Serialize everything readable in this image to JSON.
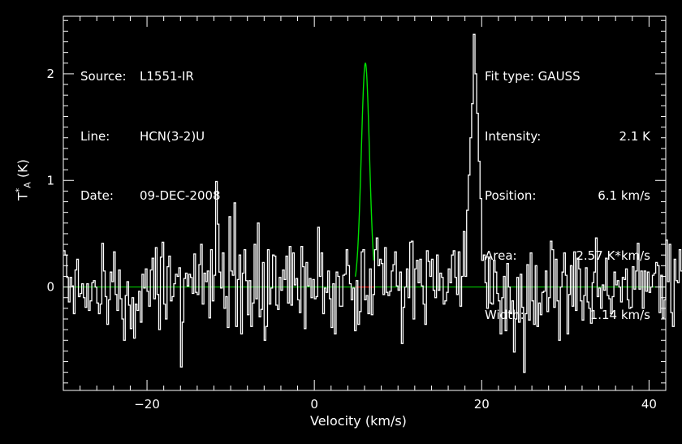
{
  "info_left": [
    {
      "label": "Source:",
      "value": "L1551-IR"
    },
    {
      "label": "Line:",
      "value": "HCN(3-2)U"
    },
    {
      "label": "Date:",
      "value": "09-DEC-2008"
    }
  ],
  "info_right": {
    "fit_type": "Fit type: GAUSS",
    "rows": [
      {
        "label": "Intensity:",
        "value": "2.1 K"
      },
      {
        "label": "Position:",
        "value": "6.1 km/s"
      },
      {
        "label": "Area:",
        "value": "2.57 K*km/s"
      },
      {
        "label": "Width:",
        "value": "1.14 km/s"
      }
    ]
  },
  "chart_data": {
    "type": "line",
    "xlabel": "Velocity (km/s)",
    "ylabel": {
      "base": "T",
      "sup": "*",
      "sub": "A",
      "unit": "(K)"
    },
    "xlim": [
      -30,
      42
    ],
    "ylim": [
      -0.97,
      2.54
    ],
    "x_ticks": [
      -20,
      0,
      20,
      40
    ],
    "y_ticks": [
      0,
      1,
      2
    ],
    "grid": false,
    "colors": {
      "spectrum": "#ffffff",
      "fit": "#00e000",
      "baseline": "#00e000",
      "fit_window": "#e00000",
      "frame": "#ffffff"
    },
    "fit": {
      "function": "gaussian",
      "peak": 2.1,
      "center": 6.1,
      "fwhm": 1.14,
      "window": [
        4.9,
        7.1
      ]
    },
    "series": [
      {
        "x_start": -29.9,
        "x_step": 0.2,
        "values": [
          0.34,
          0.3,
          0.09,
          -0.14,
          0.09,
          0.01,
          -0.25,
          0.16,
          0.26,
          -0.09,
          -0.06,
          0.03,
          -0.1,
          -0.19,
          0.03,
          -0.22,
          -0.13,
          0.04,
          0.06,
          0.0,
          -0.15,
          -0.25,
          -0.16,
          0.41,
          0.15,
          -0.09,
          -0.35,
          -0.12,
          0.14,
          0.05,
          0.33,
          -0.07,
          -0.22,
          0.16,
          -0.11,
          -0.3,
          -0.5,
          -0.08,
          0.05,
          -0.17,
          -0.39,
          -0.1,
          -0.48,
          -0.16,
          -0.22,
          -0.04,
          -0.33,
          0.12,
          -0.01,
          0.17,
          -0.04,
          -0.18,
          0.16,
          0.27,
          -0.11,
          0.37,
          -0.07,
          -0.4,
          0.28,
          0.42,
          -0.16,
          -0.3,
          0.19,
          0.29,
          -0.13,
          -0.09,
          0.03,
          0.12,
          0.1,
          0.18,
          -0.75,
          -0.33,
          0.08,
          0.13,
          0.01,
          0.12,
          0.09,
          -0.06,
          0.31,
          -0.05,
          -0.07,
          0.21,
          0.4,
          -0.16,
          0.13,
          0.05,
          0.15,
          -0.29,
          0.35,
          -0.13,
          0.11,
          0.99,
          0.59,
          0.14,
          -0.01,
          0.32,
          -0.2,
          -0.09,
          -0.38,
          0.66,
          0.15,
          0.11,
          0.79,
          -0.37,
          0.07,
          0.3,
          -0.44,
          0.13,
          0.35,
          0.06,
          -0.26,
          0.06,
          -0.37,
          -0.15,
          0.4,
          -0.11,
          0.6,
          -0.28,
          -0.21,
          0.23,
          -0.5,
          -0.37,
          0.35,
          -0.16,
          -0.01,
          0.3,
          0.29,
          -0.17,
          -0.21,
          0.09,
          -0.03,
          0.16,
          0.07,
          0.29,
          -0.15,
          0.38,
          -0.17,
          0.32,
          0.02,
          0.08,
          -0.12,
          -0.24,
          0.38,
          0.19,
          -0.39,
          0.23,
          0.01,
          0.08,
          -0.1,
          0.07,
          -0.11,
          -0.09,
          0.56,
          0.1,
          0.32,
          -0.25,
          -0.01,
          -0.05,
          0.15,
          -0.11,
          -0.38,
          0.03,
          -0.44,
          0.14,
          0.1,
          -0.18,
          -0.18,
          0.11,
          0.12,
          0.35,
          0.2,
          0.03,
          -0.12,
          -0.01,
          -0.41,
          0.06,
          -0.35,
          -0.23,
          0.33,
          0.35,
          -0.12,
          -0.08,
          -0.25,
          0.17,
          -0.26,
          -0.07,
          0.35,
          0.46,
          0.2,
          0.26,
          0.22,
          -0.07,
          0.37,
          -0.05,
          -0.08,
          -0.04,
          0.15,
          0.21,
          0.33,
          0.01,
          -0.03,
          0.14,
          -0.53,
          -0.19,
          0.0,
          0.17,
          -0.1,
          0.42,
          0.43,
          -0.3,
          0.17,
          0.25,
          0.04,
          0.26,
          0.01,
          -0.16,
          -0.35,
          0.34,
          0.24,
          0.1,
          0.26,
          -0.03,
          -0.1,
          0.3,
          -0.03,
          0.13,
          0.09,
          -0.16,
          -0.13,
          -0.05,
          0.17,
          0.04,
          0.3,
          0.34,
          0.09,
          -0.07,
          0.33,
          -0.18,
          0.1,
          0.52,
          0.1,
          0.72,
          1.05,
          1.4,
          1.72,
          2.37,
          2.0,
          1.63,
          1.18,
          0.83,
          0.25,
          0.3,
          0.04,
          -0.2,
          0.27,
          -0.15,
          -0.16,
          0.25,
          0.14,
          -0.06,
          -0.13,
          -0.44,
          -0.1,
          0.1,
          -0.41,
          0.22,
          0.0,
          -0.25,
          -0.13,
          -0.61,
          -0.3,
          0.09,
          -0.33,
          0.12,
          -0.19,
          -0.8,
          -0.25,
          0.21,
          -0.31,
          0.32,
          -0.13,
          -0.35,
          0.2,
          -0.37,
          -0.15,
          -0.26,
          -0.05,
          -0.04,
          0.15,
          -0.23,
          -0.1,
          0.43,
          0.35,
          -0.19,
          0.26,
          -0.13,
          -0.5,
          0.0,
          0.14,
          0.32,
          0.11,
          -0.44,
          -0.07,
          0.2,
          -0.18,
          0.33,
          -0.22,
          0.27,
          0.17,
          -0.13,
          -0.31,
          -0.08,
          0.18,
          -0.14,
          -0.2,
          -0.34,
          0.04,
          0.14,
          0.46,
          -0.09,
          -0.01,
          -0.2,
          0.02,
          -0.03,
          0.27,
          -0.08,
          -0.11,
          -0.25,
          -0.09,
          0.14,
          0.02,
          0.06,
          0.0,
          -0.14,
          0.09,
          0.07,
          0.17,
          -0.12,
          -0.2,
          -0.19,
          0.19,
          -0.02,
          0.15,
          0.41,
          -0.02,
          0.15,
          -0.2,
          0.15,
          -0.04,
          0.14,
          -0.05,
          0.0,
          0.11,
          0.13,
          0.23,
          0.2,
          -0.24,
          0.11,
          -0.29,
          -0.12,
          0.44,
          0.05,
          0.4,
          -0.24,
          -0.37,
          0.26,
          0.06,
          0.04,
          0.35,
          0.15,
          -0.22,
          -0.38,
          0.2,
          0.32,
          0.18,
          0.39,
          -0.09,
          0.24,
          0.72,
          -0.4,
          0.3,
          -0.18,
          0.22,
          0.41,
          -0.11,
          -0.11,
          0.11,
          -0.15,
          0.22,
          -0.3,
          -0.22,
          0.07,
          0.37,
          0.03,
          0.12,
          0.16,
          -0.16,
          -0.41,
          -0.03,
          0.22,
          0.4
        ]
      }
    ]
  }
}
